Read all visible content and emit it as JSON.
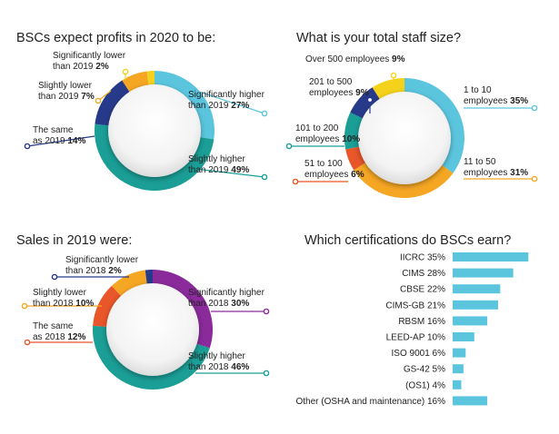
{
  "chart_data": [
    {
      "type": "pie",
      "title": "BSCs expect profits in 2020 to be:",
      "slices": [
        {
          "label": [
            "Significantly higher",
            "than 2019"
          ],
          "value": 27,
          "display": "27%",
          "color": "#5bc5de"
        },
        {
          "label": [
            "Slightly higher",
            "than 2019"
          ],
          "value": 49,
          "display": "49%",
          "color": "#1a9e96"
        },
        {
          "label": [
            "The same",
            "as 2019"
          ],
          "value": 14,
          "display": "14%",
          "color": "#273a8a"
        },
        {
          "label": [
            "Slightly lower",
            "than 2019"
          ],
          "value": 7,
          "display": "7%",
          "color": "#f5a623"
        },
        {
          "label": [
            "Significantly lower",
            "than 2019"
          ],
          "value": 2,
          "display": "2%",
          "color": "#f4d21c"
        }
      ]
    },
    {
      "type": "pie",
      "title": "What is your total staff size?",
      "slices": [
        {
          "label": [
            "1 to 10",
            "employees"
          ],
          "value": 35,
          "display": "35%",
          "color": "#5bc5de"
        },
        {
          "label": [
            "11 to 50",
            "employees"
          ],
          "value": 31,
          "display": "31%",
          "color": "#f5a623"
        },
        {
          "label": [
            "51 to 100",
            "employees"
          ],
          "value": 6,
          "display": "6%",
          "color": "#e8562a"
        },
        {
          "label": [
            "101 to 200",
            "employees"
          ],
          "value": 10,
          "display": "10%",
          "color": "#1a9e96"
        },
        {
          "label": [
            "201 to 500",
            "employees"
          ],
          "value": 9,
          "display": "9%",
          "color": "#273a8a"
        },
        {
          "label": [
            "Over 500 employees"
          ],
          "value": 9,
          "display": "9%",
          "color": "#f4d21c"
        }
      ]
    },
    {
      "type": "pie",
      "title": "Sales in 2019 were:",
      "slices": [
        {
          "label": [
            "Significantly higher",
            "than 2018"
          ],
          "value": 30,
          "display": "30%",
          "color": "#8a2a9b"
        },
        {
          "label": [
            "Slightly higher",
            "than 2018"
          ],
          "value": 46,
          "display": "46%",
          "color": "#1a9e96"
        },
        {
          "label": [
            "The same",
            "as 2018"
          ],
          "value": 12,
          "display": "12%",
          "color": "#e8562a"
        },
        {
          "label": [
            "Slightly lower",
            "than 2018"
          ],
          "value": 10,
          "display": "10%",
          "color": "#f5a623"
        },
        {
          "label": [
            "Significantly lower",
            "than 2018"
          ],
          "value": 2,
          "display": "2%",
          "color": "#273a8a"
        }
      ]
    },
    {
      "type": "bar",
      "orientation": "horizontal",
      "title": "Which certifications do BSCs earn?",
      "color": "#5bc5de",
      "categories": [
        "IICRC",
        "CIMS",
        "CBSE",
        "CIMS-GB",
        "RBSM",
        "LEED-AP",
        "ISO 9001",
        "GS-42",
        "(OS1)",
        "Other (OSHA and maintenance)"
      ],
      "values": [
        35,
        28,
        22,
        21,
        16,
        10,
        6,
        5,
        4,
        16
      ],
      "display": [
        "35%",
        "28%",
        "22%",
        "21%",
        "16%",
        "10%",
        "6%",
        "5%",
        "4%",
        "16%"
      ]
    }
  ]
}
